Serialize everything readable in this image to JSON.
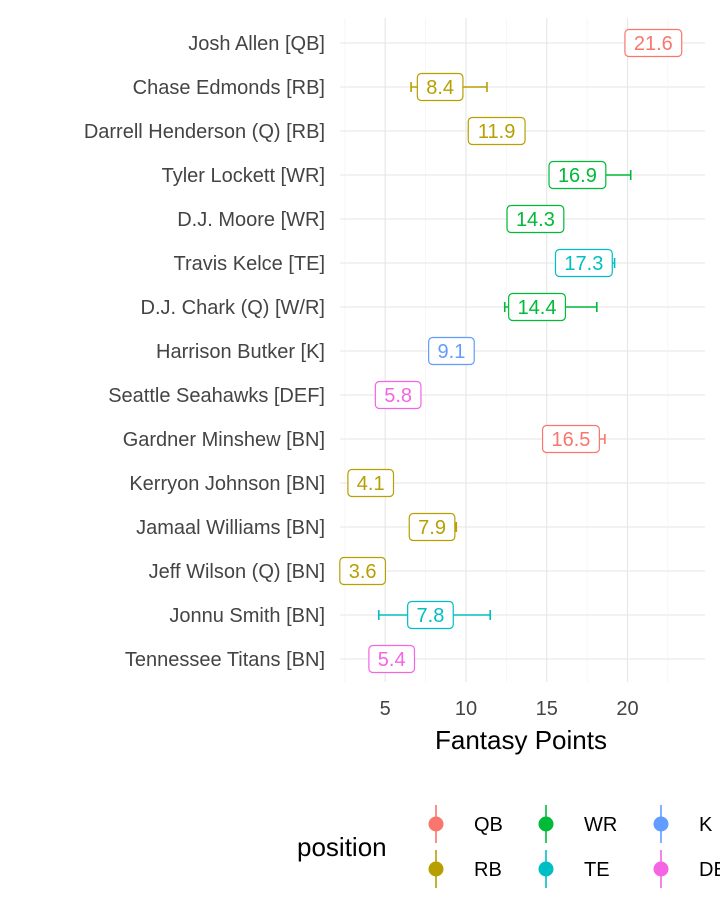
{
  "chart_data": {
    "type": "scatter",
    "title": "",
    "xlabel": "Fantasy Points",
    "ylabel": "",
    "xlim": [
      2.2,
      24.8
    ],
    "x_ticks": [
      5,
      10,
      15,
      20
    ],
    "grid": true,
    "legend_title": "position",
    "legend_position": "bottom",
    "legend": [
      {
        "key": "QB",
        "label": "QB",
        "color": "#F8766D"
      },
      {
        "key": "RB",
        "label": "RB",
        "color": "#B79F00"
      },
      {
        "key": "WR",
        "label": "WR",
        "color": "#00BA38"
      },
      {
        "key": "TE",
        "label": "TE",
        "color": "#00BFC4"
      },
      {
        "key": "K",
        "label": "K",
        "color": "#619CFF"
      },
      {
        "key": "DEF",
        "label": "DEF",
        "color": "#F564E3"
      }
    ],
    "players": [
      {
        "name": "Josh Allen [QB]",
        "position": "QB",
        "value": 21.6,
        "label": "21.6",
        "low": 20.6,
        "high": 22.7
      },
      {
        "name": "Chase Edmonds [RB]",
        "position": "RB",
        "value": 8.4,
        "label": "8.4",
        "low": 6.6,
        "high": 11.3
      },
      {
        "name": "Darrell Henderson (Q) [RB]",
        "position": "RB",
        "value": 11.9,
        "label": "11.9",
        "low": 11.4,
        "high": 12.4
      },
      {
        "name": "Tyler Lockett [WR]",
        "position": "WR",
        "value": 16.9,
        "label": "16.9",
        "low": 15.7,
        "high": 20.2
      },
      {
        "name": "D.J. Moore [WR]",
        "position": "WR",
        "value": 14.3,
        "label": "14.3",
        "low": 13.7,
        "high": 14.9
      },
      {
        "name": "Travis Kelce [TE]",
        "position": "TE",
        "value": 17.3,
        "label": "17.3",
        "low": 15.6,
        "high": 19.2
      },
      {
        "name": "D.J. Chark (Q) [W/R]",
        "position": "WR",
        "value": 14.4,
        "label": "14.4",
        "low": 12.4,
        "high": 18.1
      },
      {
        "name": "Harrison Butker [K]",
        "position": "K",
        "value": 9.1,
        "label": "9.1",
        "low": 8.6,
        "high": 9.6
      },
      {
        "name": "Seattle Seahawks [DEF]",
        "position": "DEF",
        "value": 5.8,
        "label": "5.8",
        "low": 5.3,
        "high": 6.3
      },
      {
        "name": "Gardner Minshew [BN]",
        "position": "QB",
        "value": 16.5,
        "label": "16.5",
        "low": 14.8,
        "high": 18.6
      },
      {
        "name": "Kerryon Johnson [BN]",
        "position": "RB",
        "value": 4.1,
        "label": "4.1",
        "low": 3.6,
        "high": 4.6
      },
      {
        "name": "Jamaal Williams [BN]",
        "position": "RB",
        "value": 7.9,
        "label": "7.9",
        "low": 6.6,
        "high": 9.4
      },
      {
        "name": "Jeff Wilson (Q) [BN]",
        "position": "RB",
        "value": 3.6,
        "label": "3.6",
        "low": 3.1,
        "high": 4.1
      },
      {
        "name": "Jonnu Smith [BN]",
        "position": "TE",
        "value": 7.8,
        "label": "7.8",
        "low": 4.6,
        "high": 11.5
      },
      {
        "name": "Tennessee Titans [BN]",
        "position": "DEF",
        "value": 5.4,
        "label": "5.4",
        "low": 4.9,
        "high": 5.9
      }
    ]
  }
}
